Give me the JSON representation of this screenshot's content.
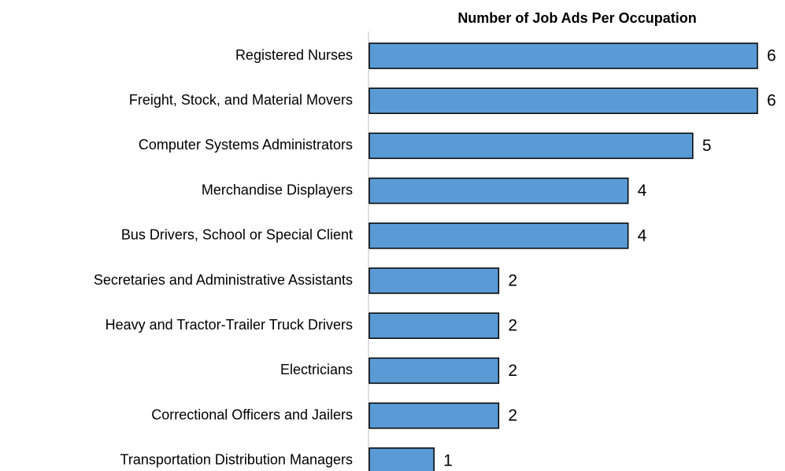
{
  "chart_data": {
    "type": "bar",
    "orientation": "horizontal",
    "title": "Number of Job Ads Per Occupation",
    "categories": [
      "Registered Nurses",
      "Freight, Stock, and Material Movers",
      "Computer Systems Administrators",
      "Merchandise Displayers",
      "Bus Drivers, School or Special Client",
      "Secretaries and Administrative Assistants",
      "Heavy and Tractor-Trailer Truck Drivers",
      "Electricians",
      "Correctional Officers and Jailers",
      "Transportation Distribution Managers"
    ],
    "values": [
      6,
      6,
      5,
      4,
      4,
      2,
      2,
      2,
      2,
      1
    ],
    "color": "#5b9bd5",
    "xlim": [
      0,
      6
    ]
  }
}
